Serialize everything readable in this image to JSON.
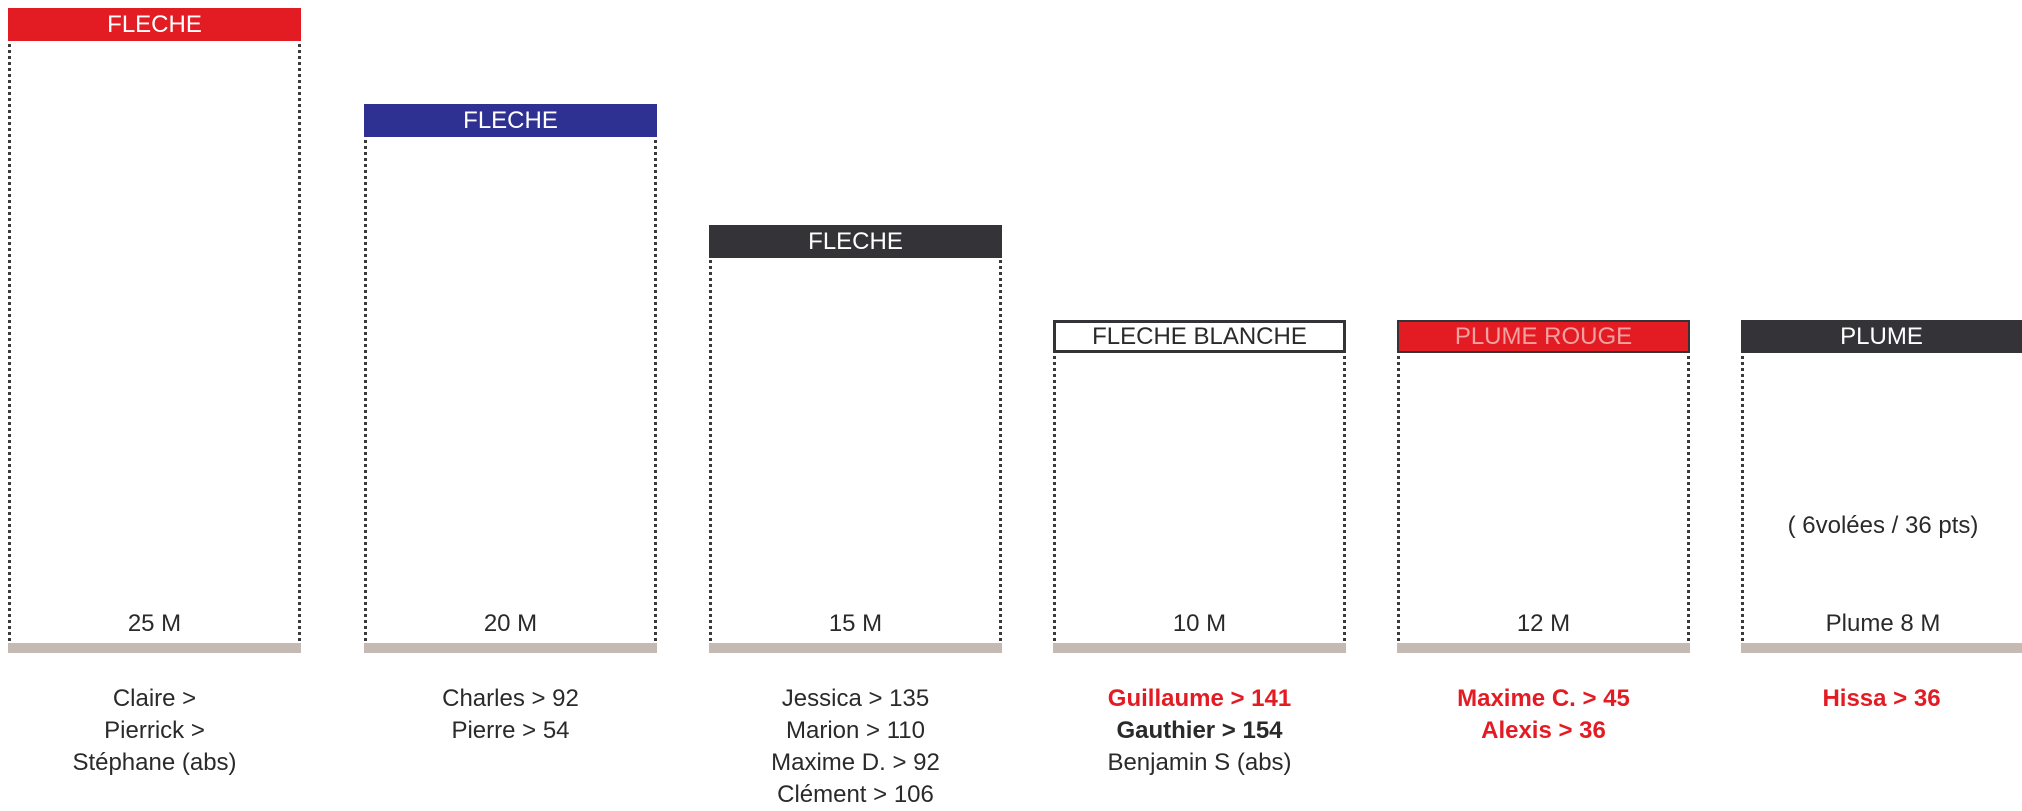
{
  "colors": {
    "red": "#e31c24",
    "blue": "#2e3192",
    "dark": "#333338",
    "base": "#c4b9b3"
  },
  "columns": [
    {
      "badge": "FLECHE",
      "badge_style": "red",
      "distance": "25 M",
      "names": [
        {
          "text": "Claire >",
          "style": "normal"
        },
        {
          "text": "Pierrick >",
          "style": "normal"
        },
        {
          "text": "Stéphane (abs)",
          "style": "normal"
        }
      ]
    },
    {
      "badge": "FLECHE",
      "badge_style": "blue",
      "distance": "20 M",
      "names": [
        {
          "text": "Charles > 92",
          "style": "normal"
        },
        {
          "text": "Pierre > 54",
          "style": "normal"
        }
      ]
    },
    {
      "badge": "FLECHE",
      "badge_style": "dark",
      "distance": "15 M",
      "names": [
        {
          "text": "Jessica > 135",
          "style": "normal"
        },
        {
          "text": "Marion > 110",
          "style": "normal"
        },
        {
          "text": "Maxime D. > 92",
          "style": "normal"
        },
        {
          "text": "Clément  > 106",
          "style": "normal"
        }
      ]
    },
    {
      "badge": "FLECHE BLANCHE",
      "badge_style": "white",
      "distance": "10 M",
      "names": [
        {
          "text": "Guillaume  >  141",
          "style": "red"
        },
        {
          "text": "Gauthier  >  154",
          "style": "bold"
        },
        {
          "text": "Benjamin S (abs)",
          "style": "normal"
        }
      ]
    },
    {
      "badge": "PLUME ROUGE",
      "badge_style": "red-muted",
      "distance": "12 M",
      "names": [
        {
          "text": "Maxime C. > 45",
          "style": "red"
        },
        {
          "text": "Alexis > 36",
          "style": "red"
        }
      ]
    },
    {
      "badge": "PLUME",
      "badge_style": "dark",
      "distance": "Plume   8 M",
      "note": "( 6volées / 36 pts)",
      "names": [
        {
          "text": "Hissa  >  36",
          "style": "red"
        }
      ]
    }
  ]
}
